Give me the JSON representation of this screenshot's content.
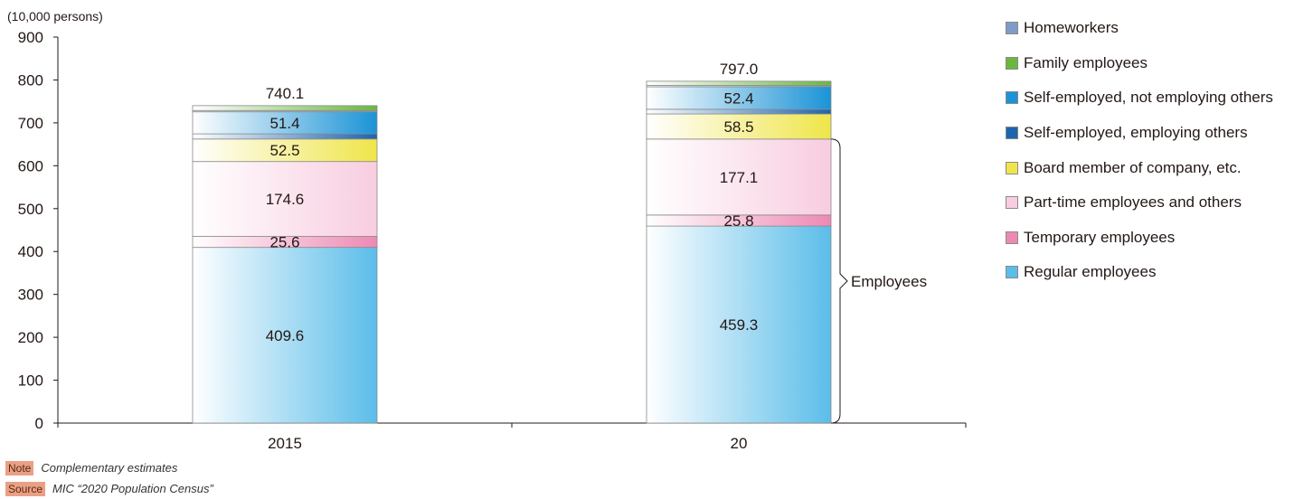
{
  "chart_data": {
    "type": "bar",
    "stacked": true,
    "unit_label": "(10,000 persons)",
    "categories": [
      "2015",
      "20"
    ],
    "ylim": [
      0,
      900
    ],
    "yticks": [
      0,
      100,
      200,
      300,
      400,
      500,
      600,
      700,
      800,
      900
    ],
    "totals": [
      "740.1",
      "797.0"
    ],
    "series": [
      {
        "name": "Regular employees",
        "color": "#5bbde9",
        "values": [
          409.6,
          459.3
        ],
        "labels": [
          "409.6",
          "459.3"
        ]
      },
      {
        "name": "Temporary employees",
        "color": "#ee89b4",
        "values": [
          25.6,
          25.8
        ],
        "labels": [
          "25.6",
          "25.8"
        ]
      },
      {
        "name": "Part-time employees and others",
        "color": "#f8cde0",
        "values": [
          174.6,
          177.1
        ],
        "labels": [
          "174.6",
          "177.1"
        ]
      },
      {
        "name": "Board member of company, etc.",
        "color": "#efe54a",
        "values": [
          52.5,
          58.5
        ],
        "labels": [
          "52.5",
          "58.5"
        ]
      },
      {
        "name": "Self-employed, employing others",
        "color": "#1c64ad",
        "values": [
          12,
          11
        ],
        "labels": [
          "",
          ""
        ]
      },
      {
        "name": "Self-employed, not employing others",
        "color": "#1b93d6",
        "values": [
          51.4,
          52.4
        ],
        "labels": [
          "51.4",
          "52.4"
        ]
      },
      {
        "name": "Homeworkers",
        "color": "#7f9cc8",
        "values": [
          3,
          3
        ],
        "labels": [
          "",
          ""
        ]
      },
      {
        "name": "Family employees",
        "color": "#6ab73f",
        "values": [
          11.4,
          9.9
        ],
        "labels": [
          "",
          ""
        ]
      }
    ],
    "legend_order": [
      "Homeworkers",
      "Family employees",
      "Self-employed, not employing others",
      "Self-employed, employing others",
      "Board member of company, etc.",
      "Part-time employees and others",
      "Temporary employees",
      "Regular employees"
    ],
    "bracket_label": "Employees",
    "legend_position": "right",
    "grid": false
  },
  "notes": {
    "note_tag": "Note",
    "note_text": "Complementary estimates",
    "source_tag": "Source",
    "source_text": "MIC “2020 Population Census”"
  }
}
